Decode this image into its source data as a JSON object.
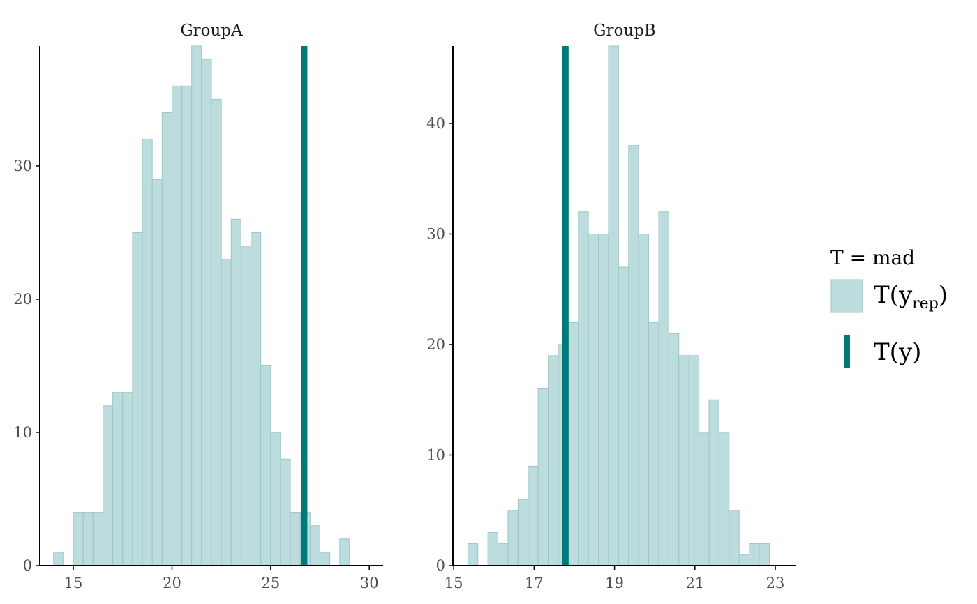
{
  "chart_data": [
    {
      "type": "bar",
      "facet": "GroupA",
      "bin_width": 0.5,
      "bin_lefts": [
        14.0,
        14.5,
        15.0,
        15.5,
        16.0,
        16.5,
        17.0,
        17.5,
        18.0,
        18.5,
        19.0,
        19.5,
        20.0,
        20.5,
        21.0,
        21.5,
        22.0,
        22.5,
        23.0,
        23.5,
        24.0,
        24.5,
        25.0,
        25.5,
        26.0,
        26.5,
        27.0,
        27.5,
        28.0,
        28.5,
        29.0,
        29.5
      ],
      "counts": [
        1,
        0,
        4,
        4,
        4,
        12,
        13,
        13,
        25,
        32,
        29,
        34,
        36,
        36,
        39,
        38,
        35,
        23,
        26,
        24,
        25,
        15,
        10,
        8,
        4,
        4,
        3,
        1,
        0,
        2,
        0,
        0
      ],
      "observed": 26.7,
      "xlim": [
        13.3,
        30.7
      ],
      "ylim": [
        0,
        39
      ],
      "x_ticks": [
        15,
        20,
        25,
        30
      ],
      "x_tick_labels": [
        "15",
        "20",
        "25",
        "30"
      ],
      "y_ticks": [
        0,
        10,
        20,
        30
      ],
      "y_tick_labels": [
        "0",
        "10",
        "20",
        "30"
      ]
    },
    {
      "type": "bar",
      "facet": "GroupB",
      "bin_width": 0.25,
      "bin_lefts": [
        15.35,
        15.6,
        15.85,
        16.1,
        16.35,
        16.6,
        16.85,
        17.1,
        17.35,
        17.6,
        17.85,
        18.1,
        18.35,
        18.6,
        18.85,
        19.1,
        19.35,
        19.6,
        19.85,
        20.1,
        20.35,
        20.6,
        20.85,
        21.1,
        21.35,
        21.6,
        21.85,
        22.1,
        22.35,
        22.6,
        22.85,
        23.1
      ],
      "counts": [
        2,
        0,
        3,
        2,
        5,
        6,
        9,
        16,
        19,
        20,
        22,
        32,
        30,
        30,
        47,
        27,
        38,
        30,
        22,
        32,
        21,
        19,
        19,
        12,
        15,
        12,
        5,
        1,
        2,
        2,
        0,
        0
      ],
      "observed": 17.78,
      "xlim": [
        14.98,
        23.52
      ],
      "ylim": [
        0,
        47
      ],
      "x_ticks": [
        15,
        17,
        19,
        21,
        23
      ],
      "x_tick_labels": [
        "15",
        "17",
        "19",
        "21",
        "23"
      ],
      "y_ticks": [
        0,
        10,
        20,
        30,
        40
      ],
      "y_tick_labels": [
        "0",
        "10",
        "20",
        "30",
        "40"
      ]
    }
  ],
  "facets": {
    "left_title": "GroupA",
    "right_title": "GroupB"
  },
  "legend": {
    "title": "T = mad",
    "rep_label_main": "T(y",
    "rep_label_sub": "rep",
    "rep_label_close": ")",
    "obs_label": "T(y)",
    "placement": "right"
  },
  "colors": {
    "bar_fill": "#bcdcdd",
    "bar_stroke": "#9cc7c8",
    "observed_line": "#00797a",
    "axis": "#000000",
    "tick_text": "#4d4d4d"
  }
}
